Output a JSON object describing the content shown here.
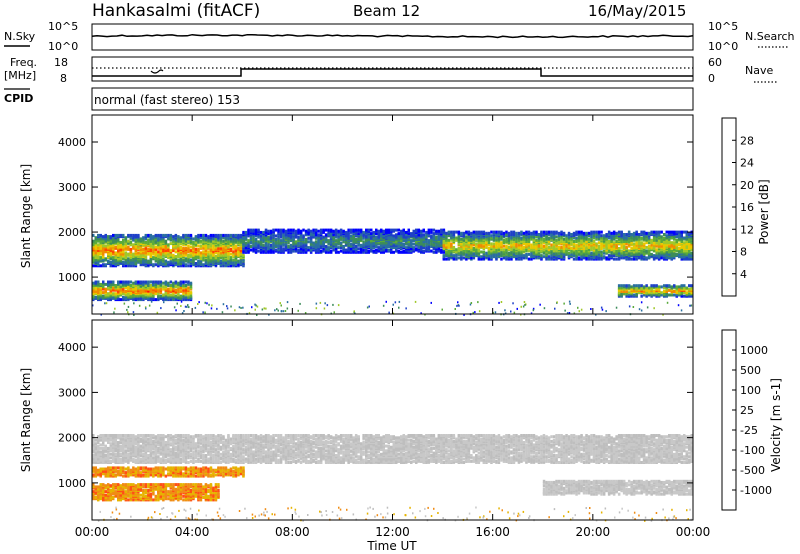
{
  "header": {
    "station": "Hankasalmi (fitACF)",
    "beam": "Beam 12",
    "date": "16/May/2015"
  },
  "sky_panel": {
    "left_label": "N.Sky",
    "right_label": "N.Search",
    "left_ticks": [
      "10^5",
      "10^0"
    ],
    "right_ticks": [
      "10^5",
      "10^0"
    ]
  },
  "freq_panel": {
    "left_label_line1": "Freq.",
    "left_label_line2": "[MHz]",
    "left_ticks": [
      "18",
      "8"
    ],
    "right_ticks": [
      "60",
      "0"
    ],
    "right_label": "Nave"
  },
  "cpid_panel": {
    "label": "CPID",
    "text": "normal (fast stereo) 153"
  },
  "colors": {
    "power_scale": [
      "#0000ff",
      "#1e40c8",
      "#2a6fa0",
      "#3c8c5a",
      "#5aaa3a",
      "#a0c828",
      "#e8c800",
      "#f08c00",
      "#ff4600",
      "#ff0000"
    ],
    "velocity_scale": [
      "#1428c8",
      "#1e64b4",
      "#1ea046",
      "#64c83c",
      "#bebebe",
      "#c8c8c8",
      "#e6b400",
      "#f08c14",
      "#ff5014",
      "#ff0000"
    ]
  },
  "chart_data": [
    {
      "type": "heatmap",
      "title": "Power",
      "xlabel": "",
      "ylabel": "Slant Range [km]",
      "x_ticks": [
        "00:00",
        "04:00",
        "08:00",
        "12:00",
        "16:00",
        "20:00",
        "00:00"
      ],
      "xlim_hours": [
        0,
        24
      ],
      "y_ticks": [
        1000,
        2000,
        3000,
        4000
      ],
      "ylim": [
        180,
        4600
      ],
      "colorbar_label": "Power [dB]",
      "colorbar_ticks": [
        4,
        8,
        12,
        16,
        20,
        24,
        28
      ],
      "colorbar_range": [
        0,
        32
      ],
      "series": [
        {
          "x_start": 0,
          "x_end": 6,
          "range_center": 1600,
          "range_width": 700,
          "level": 0.8
        },
        {
          "x_start": 6,
          "x_end": 14,
          "range_center": 1800,
          "range_width": 500,
          "level": 0.35
        },
        {
          "x_start": 14,
          "x_end": 24,
          "range_center": 1700,
          "range_width": 600,
          "level": 0.7
        },
        {
          "x_start": 0,
          "x_end": 4,
          "range_center": 700,
          "range_width": 400,
          "level": 0.85
        },
        {
          "x_start": 21,
          "x_end": 24,
          "range_center": 700,
          "range_width": 250,
          "level": 0.8
        }
      ]
    },
    {
      "type": "heatmap",
      "title": "Velocity",
      "xlabel": "Time UT",
      "ylabel": "Slant Range [km]",
      "x_ticks": [
        "00:00",
        "04:00",
        "08:00",
        "12:00",
        "16:00",
        "20:00",
        "00:00"
      ],
      "xlim_hours": [
        0,
        24
      ],
      "y_ticks": [
        1000,
        2000,
        3000,
        4000
      ],
      "ylim": [
        180,
        4600
      ],
      "colorbar_label": "Velocity [m s-1]",
      "colorbar_ticks": [
        "1000",
        "500",
        "100",
        "25",
        "-25",
        "-100",
        "-500",
        "-1000"
      ],
      "series": [
        {
          "x_start": 0,
          "x_end": 24,
          "range_center": 1750,
          "range_width": 600,
          "value": 0
        },
        {
          "x_start": 0,
          "x_end": 5,
          "range_center": 800,
          "range_width": 350,
          "value": -300
        },
        {
          "x_start": 0,
          "x_end": 6,
          "range_center": 1250,
          "range_width": 200,
          "value": -200
        },
        {
          "x_start": 18,
          "x_end": 24,
          "range_center": 900,
          "range_width": 300,
          "value": 0
        }
      ]
    }
  ]
}
